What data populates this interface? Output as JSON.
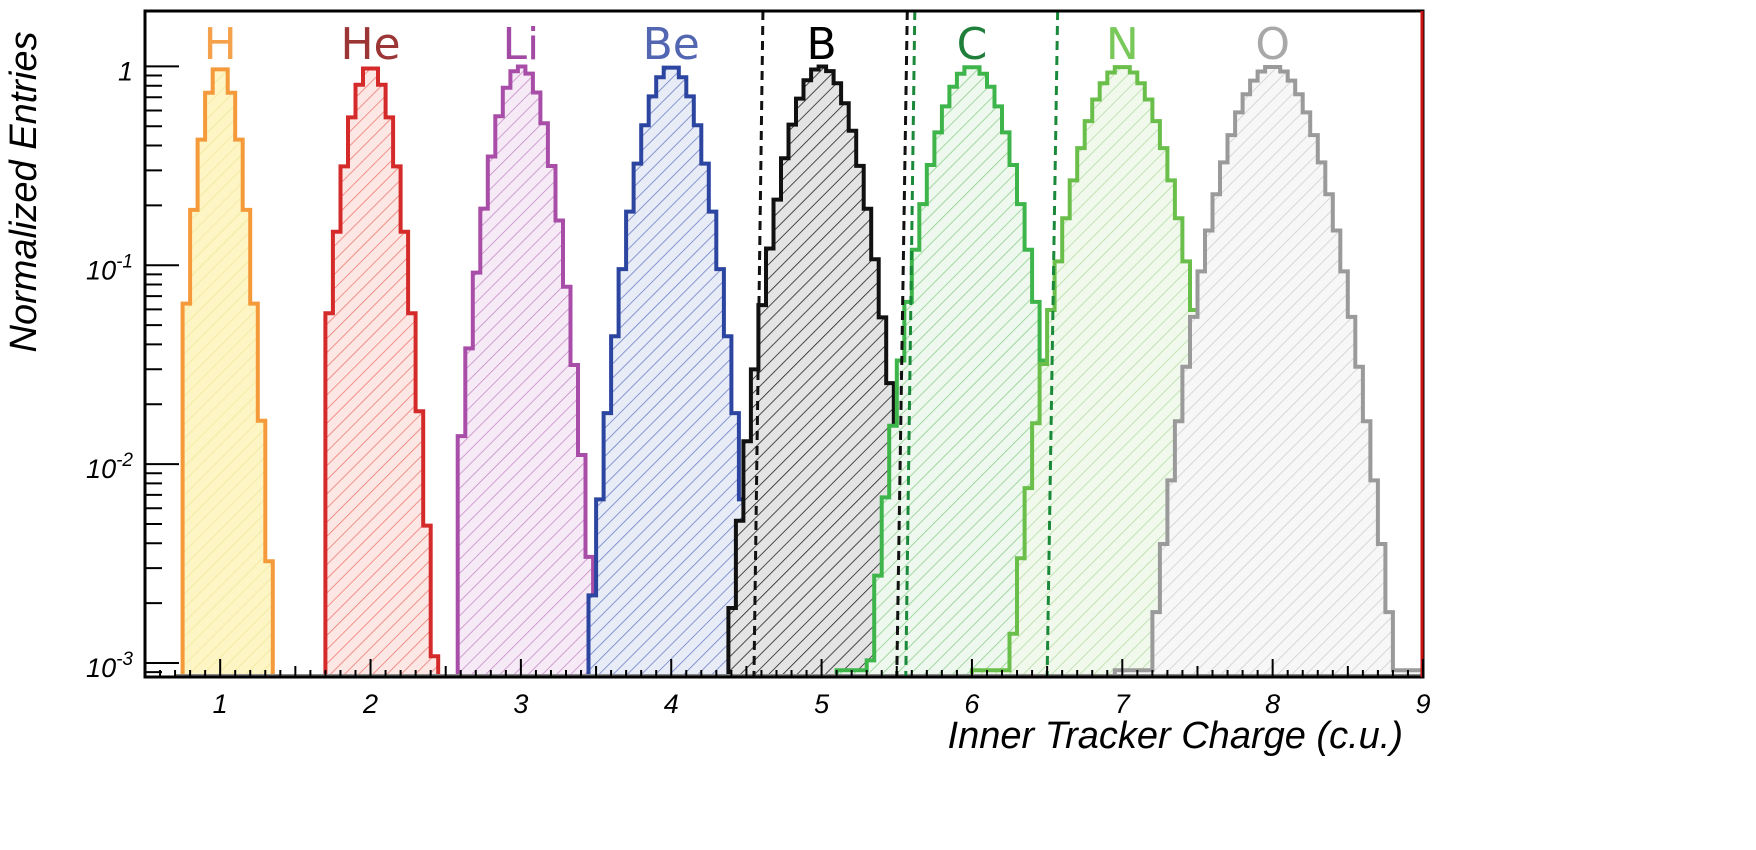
{
  "chart_data": {
    "type": "histogram",
    "xlabel": "Inner Tracker Charge (c.u.)",
    "ylabel": "Normalized Entries",
    "xlim": [
      0.5,
      9.0
    ],
    "ylim": [
      0.00085,
      1.9
    ],
    "yscale": "log",
    "x_ticks": [
      "1",
      "2",
      "3",
      "4",
      "5",
      "6",
      "7",
      "8",
      "9"
    ],
    "y_ticks": [
      {
        "value": 1,
        "base": "1",
        "exp": ""
      },
      {
        "value": 0.1,
        "base": "10",
        "exp": "-1"
      },
      {
        "value": 0.01,
        "base": "10",
        "exp": "-2"
      },
      {
        "value": 0.001,
        "base": "10",
        "exp": "-3"
      }
    ],
    "series": [
      {
        "name": "H",
        "label_color": "#f5a04a",
        "color": "#f59a3a",
        "fill": "#fdf6c4",
        "hatch": "#f3e6a0",
        "center": 1.0,
        "sigma": 0.096,
        "xmin": 0.75,
        "xmax": 1.36
      },
      {
        "name": "He",
        "label_color": "#9c3535",
        "color": "#d42a2a",
        "fill": "#fce7e4",
        "hatch": "#ee7a72",
        "center": 2.0,
        "sigma": 0.115,
        "xmin": 1.7,
        "xmax": 2.46
      },
      {
        "name": "Li",
        "label_color": "#a24aa4",
        "color": "#a84ea8",
        "fill": "#f7eaf7",
        "hatch": "#c48cc4",
        "center": 3.0,
        "sigma": 0.135,
        "xmin": 2.58,
        "xmax": 3.48
      },
      {
        "name": "Be",
        "label_color": "#5266b2",
        "color": "#2b45a0",
        "fill": "#e8ecf6",
        "hatch": "#6f80c8",
        "center": 4.0,
        "sigma": 0.15,
        "xmin": 3.45,
        "xmax": 4.58
      },
      {
        "name": "B",
        "label_color": "#000000",
        "color": "#111111",
        "fill": "#e4e4e4",
        "hatch": "#222222",
        "center": 5.0,
        "sigma": 0.168,
        "xmin": 4.38,
        "xmax": 5.85
      },
      {
        "name": "C",
        "label_color": "#1f7f3a",
        "color": "#3db54a",
        "fill": "#eef8ee",
        "hatch": "#8fd08f",
        "center": 6.0,
        "sigma": 0.182,
        "xmin": 5.1,
        "xmax": 7.3
      },
      {
        "name": "N",
        "label_color": "#78c85a",
        "color": "#6abf4b",
        "fill": "#f1f9ec",
        "hatch": "#b7dca7",
        "center": 7.0,
        "sigma": 0.2,
        "xmin": 6.0,
        "xmax": 8.3
      },
      {
        "name": "O",
        "label_color": "#a8a8a8",
        "color": "#9a9a9a",
        "fill": "#f7f7f7",
        "hatch": "#cfcfcf",
        "center": 8.0,
        "sigma": 0.218,
        "xmin": 6.95,
        "xmax": 9.0
      }
    ],
    "cut_lines": [
      {
        "x1": 4.61,
        "x2": 4.55,
        "color": "#111111"
      },
      {
        "x1": 5.57,
        "x2": 5.5,
        "color": "#111111"
      },
      {
        "x1": 5.62,
        "x2": 5.56,
        "color": "#1a8a3a"
      },
      {
        "x1": 6.57,
        "x2": 6.5,
        "color": "#1a8a3a"
      }
    ]
  }
}
